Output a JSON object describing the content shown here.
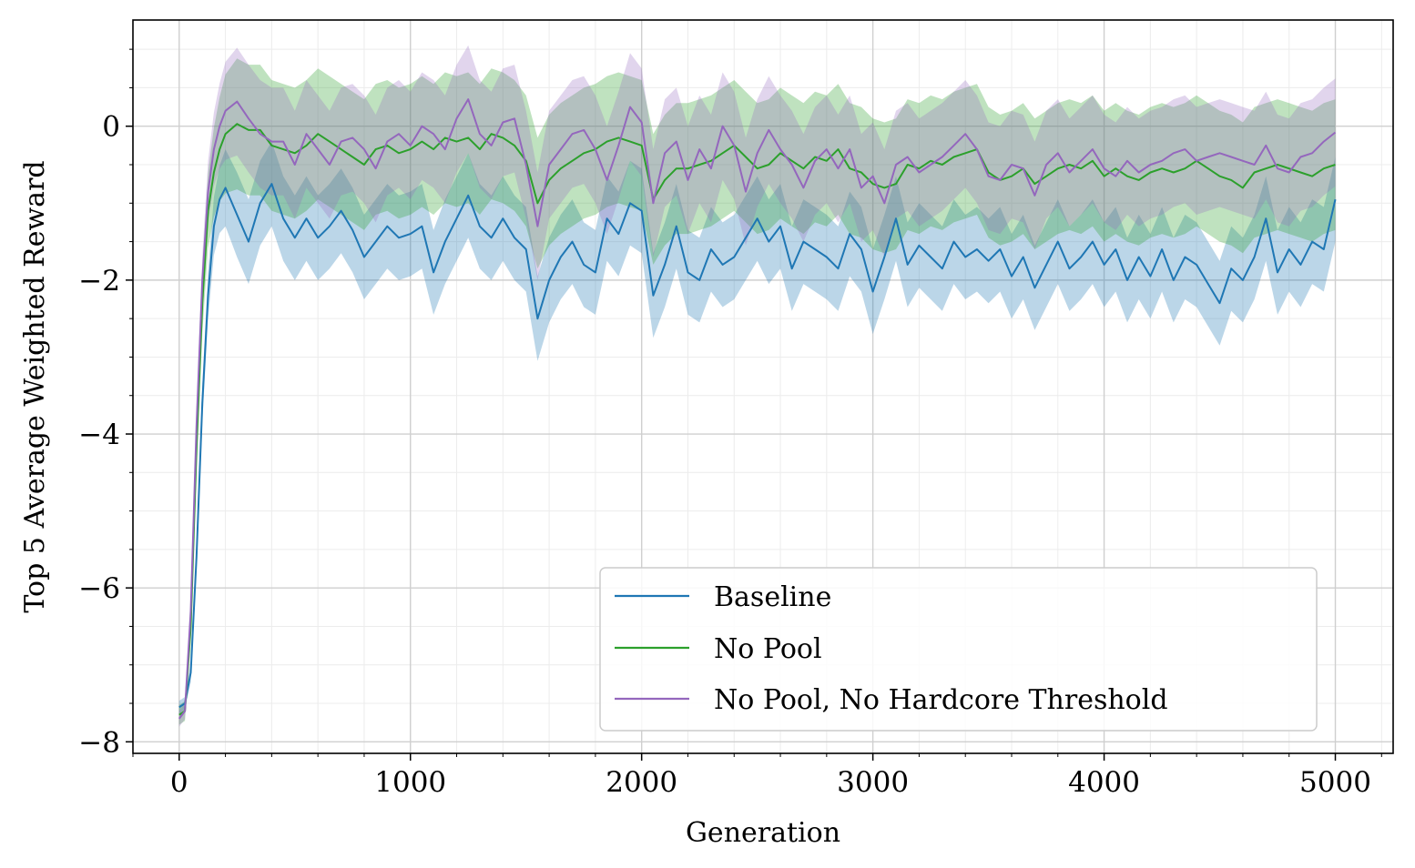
{
  "chart_data": {
    "type": "line",
    "title": "",
    "xlabel": "Generation",
    "ylabel": "Top 5 Average Weighted Reward",
    "xlim": [
      -200,
      5250
    ],
    "ylim": [
      -8.15,
      1.38
    ],
    "xticks": [
      0,
      1000,
      2000,
      3000,
      4000,
      5000
    ],
    "xtick_labels": [
      "0",
      "1000",
      "2000",
      "3000",
      "4000",
      "5000"
    ],
    "yticks": [
      -8,
      -6,
      -4,
      -2,
      0
    ],
    "ytick_labels": [
      "−8",
      "−6",
      "−4",
      "−2",
      "0"
    ],
    "grid": true,
    "minor_grid": true,
    "legend_position": "lower-right",
    "series": [
      {
        "name": "Baseline",
        "color": "#1f77b4",
        "x": [
          0,
          25,
          50,
          75,
          100,
          125,
          150,
          175,
          200,
          250,
          300,
          350,
          400,
          450,
          500,
          550,
          600,
          650,
          700,
          750,
          800,
          850,
          900,
          950,
          1000,
          1050,
          1100,
          1150,
          1200,
          1250,
          1300,
          1350,
          1400,
          1450,
          1500,
          1550,
          1600,
          1650,
          1700,
          1750,
          1800,
          1850,
          1900,
          1950,
          2000,
          2050,
          2100,
          2150,
          2200,
          2250,
          2300,
          2350,
          2400,
          2450,
          2500,
          2550,
          2600,
          2650,
          2700,
          2750,
          2800,
          2850,
          2900,
          2950,
          3000,
          3050,
          3100,
          3150,
          3200,
          3250,
          3300,
          3350,
          3400,
          3450,
          3500,
          3550,
          3600,
          3650,
          3700,
          3750,
          3800,
          3850,
          3900,
          3950,
          4000,
          4050,
          4100,
          4150,
          4200,
          4250,
          4300,
          4350,
          4400,
          4450,
          4500,
          4550,
          4600,
          4650,
          4700,
          4750,
          4800,
          4850,
          4900,
          4950,
          5000
        ],
        "y": [
          -7.55,
          -7.5,
          -7.1,
          -5.6,
          -3.6,
          -2.2,
          -1.3,
          -0.95,
          -0.8,
          -1.15,
          -1.5,
          -1.0,
          -0.75,
          -1.2,
          -1.45,
          -1.2,
          -1.45,
          -1.3,
          -1.1,
          -1.35,
          -1.7,
          -1.5,
          -1.3,
          -1.45,
          -1.4,
          -1.3,
          -1.9,
          -1.5,
          -1.2,
          -0.9,
          -1.3,
          -1.45,
          -1.2,
          -1.45,
          -1.6,
          -2.5,
          -2.0,
          -1.7,
          -1.5,
          -1.8,
          -1.9,
          -1.2,
          -1.4,
          -1.0,
          -1.1,
          -2.2,
          -1.8,
          -1.3,
          -1.9,
          -2.0,
          -1.6,
          -1.8,
          -1.7,
          -1.45,
          -1.2,
          -1.5,
          -1.3,
          -1.85,
          -1.5,
          -1.6,
          -1.7,
          -1.85,
          -1.4,
          -1.6,
          -2.15,
          -1.7,
          -1.2,
          -1.8,
          -1.55,
          -1.7,
          -1.85,
          -1.5,
          -1.7,
          -1.6,
          -1.75,
          -1.6,
          -1.95,
          -1.7,
          -2.1,
          -1.8,
          -1.5,
          -1.85,
          -1.7,
          -1.5,
          -1.8,
          -1.6,
          -2.0,
          -1.7,
          -1.95,
          -1.6,
          -2.0,
          -1.7,
          -1.8,
          -2.05,
          -2.3,
          -1.85,
          -2.0,
          -1.7,
          -1.2,
          -1.9,
          -1.6,
          -1.8,
          -1.5,
          -1.6,
          -0.95
        ]
      },
      {
        "name": "No Pool",
        "color": "#2ca02c",
        "x": [
          0,
          25,
          50,
          75,
          100,
          125,
          150,
          175,
          200,
          250,
          300,
          350,
          400,
          450,
          500,
          550,
          600,
          650,
          700,
          750,
          800,
          850,
          900,
          950,
          1000,
          1050,
          1100,
          1150,
          1200,
          1250,
          1300,
          1350,
          1400,
          1450,
          1500,
          1550,
          1600,
          1650,
          1700,
          1750,
          1800,
          1850,
          1900,
          1950,
          2000,
          2050,
          2100,
          2150,
          2200,
          2250,
          2300,
          2350,
          2400,
          2450,
          2500,
          2550,
          2600,
          2650,
          2700,
          2750,
          2800,
          2850,
          2900,
          2950,
          3000,
          3050,
          3100,
          3150,
          3200,
          3250,
          3300,
          3350,
          3400,
          3450,
          3500,
          3550,
          3600,
          3650,
          3700,
          3750,
          3800,
          3850,
          3900,
          3950,
          4000,
          4050,
          4100,
          4150,
          4200,
          4250,
          4300,
          4350,
          4400,
          4450,
          4500,
          4550,
          4600,
          4650,
          4700,
          4750,
          4800,
          4850,
          4900,
          4950,
          5000
        ],
        "y": [
          -7.65,
          -7.6,
          -6.5,
          -4.2,
          -2.3,
          -1.1,
          -0.6,
          -0.3,
          -0.1,
          0.03,
          -0.05,
          -0.05,
          -0.25,
          -0.3,
          -0.35,
          -0.25,
          -0.1,
          -0.2,
          -0.3,
          -0.4,
          -0.5,
          -0.3,
          -0.25,
          -0.35,
          -0.3,
          -0.2,
          -0.3,
          -0.15,
          -0.2,
          -0.15,
          -0.3,
          -0.1,
          -0.15,
          -0.25,
          -0.45,
          -1.0,
          -0.7,
          -0.55,
          -0.45,
          -0.35,
          -0.3,
          -0.2,
          -0.15,
          -0.2,
          -0.25,
          -0.95,
          -0.7,
          -0.55,
          -0.55,
          -0.5,
          -0.45,
          -0.35,
          -0.25,
          -0.4,
          -0.55,
          -0.5,
          -0.35,
          -0.45,
          -0.55,
          -0.4,
          -0.45,
          -0.3,
          -0.55,
          -0.6,
          -0.75,
          -0.8,
          -0.75,
          -0.5,
          -0.55,
          -0.45,
          -0.5,
          -0.4,
          -0.35,
          -0.3,
          -0.6,
          -0.7,
          -0.65,
          -0.55,
          -0.75,
          -0.65,
          -0.55,
          -0.5,
          -0.55,
          -0.45,
          -0.65,
          -0.55,
          -0.65,
          -0.7,
          -0.6,
          -0.55,
          -0.6,
          -0.55,
          -0.45,
          -0.55,
          -0.65,
          -0.7,
          -0.8,
          -0.6,
          -0.55,
          -0.5,
          -0.55,
          -0.6,
          -0.65,
          -0.55,
          -0.5
        ]
      },
      {
        "name": "No Pool, No Hardcore Threshold",
        "color": "#9467bd",
        "x": [
          0,
          25,
          50,
          75,
          100,
          125,
          150,
          175,
          200,
          250,
          300,
          350,
          400,
          450,
          500,
          550,
          600,
          650,
          700,
          750,
          800,
          850,
          900,
          950,
          1000,
          1050,
          1100,
          1150,
          1200,
          1250,
          1300,
          1350,
          1400,
          1450,
          1500,
          1550,
          1600,
          1650,
          1700,
          1750,
          1800,
          1850,
          1900,
          1950,
          2000,
          2050,
          2100,
          2150,
          2200,
          2250,
          2300,
          2350,
          2400,
          2450,
          2500,
          2550,
          2600,
          2650,
          2700,
          2750,
          2800,
          2850,
          2900,
          2950,
          3000,
          3050,
          3100,
          3150,
          3200,
          3250,
          3300,
          3350,
          3400,
          3450,
          3500,
          3550,
          3600,
          3650,
          3700,
          3750,
          3800,
          3850,
          3900,
          3950,
          4000,
          4050,
          4100,
          4150,
          4200,
          4250,
          4300,
          4350,
          4400,
          4450,
          4500,
          4550,
          4600,
          4650,
          4700,
          4750,
          4800,
          4850,
          4900,
          4950,
          5000
        ],
        "y": [
          -7.7,
          -7.6,
          -6.3,
          -3.9,
          -2.0,
          -0.85,
          -0.3,
          0.0,
          0.2,
          0.32,
          0.1,
          -0.1,
          -0.2,
          -0.2,
          -0.5,
          -0.1,
          -0.3,
          -0.5,
          -0.2,
          -0.15,
          -0.3,
          -0.55,
          -0.2,
          -0.1,
          -0.25,
          0.0,
          -0.1,
          -0.3,
          0.1,
          0.35,
          -0.1,
          -0.25,
          0.05,
          0.1,
          -0.5,
          -1.3,
          -0.5,
          -0.3,
          -0.1,
          -0.05,
          -0.3,
          -0.7,
          -0.25,
          0.25,
          0.05,
          -1.0,
          -0.35,
          -0.2,
          -0.7,
          -0.3,
          -0.55,
          0.0,
          -0.25,
          -0.85,
          -0.35,
          -0.05,
          -0.3,
          -0.5,
          -0.8,
          -0.45,
          -0.3,
          -0.55,
          -0.3,
          -0.8,
          -0.65,
          -1.0,
          -0.5,
          -0.4,
          -0.6,
          -0.5,
          -0.4,
          -0.25,
          -0.1,
          -0.3,
          -0.65,
          -0.7,
          -0.5,
          -0.55,
          -0.9,
          -0.5,
          -0.35,
          -0.6,
          -0.45,
          -0.3,
          -0.55,
          -0.65,
          -0.45,
          -0.6,
          -0.5,
          -0.45,
          -0.35,
          -0.3,
          -0.45,
          -0.4,
          -0.35,
          -0.4,
          -0.45,
          -0.5,
          -0.25,
          -0.55,
          -0.6,
          -0.4,
          -0.35,
          -0.2,
          -0.08
        ]
      }
    ]
  }
}
